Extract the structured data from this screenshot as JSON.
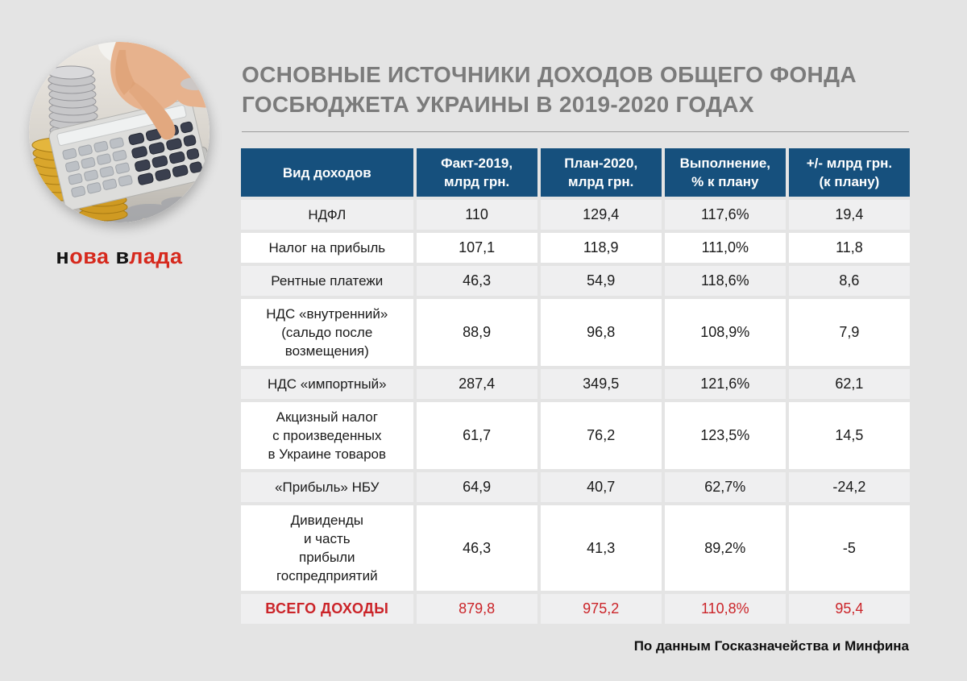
{
  "colors": {
    "page_bg": "#e4e4e4",
    "header_bg": "#16507d",
    "header_text": "#ffffff",
    "row_gray": "#efeff0",
    "row_white": "#ffffff",
    "title_gray": "#7b7b7b",
    "total_red": "#cb2429",
    "logo_black": "#141414",
    "logo_red": "#d6291d",
    "divider": "#9a9a9a",
    "footer_text": "#0f0f0f"
  },
  "header": {
    "title_line1": "ОСНОВНЫЕ ИСТОЧНИКИ ДОХОДОВ ОБЩЕГО ФОНДА",
    "title_line2": "ГОСБЮДЖЕТА УКРАИНЫ В 2019-2020 ГОДАХ"
  },
  "logo": {
    "word1_first": "н",
    "word1_rest": "ова",
    "word2_first": "в",
    "word2_rest": "лада"
  },
  "footer": {
    "source": "По данным Госказначейства и Минфина"
  },
  "chart_data": {
    "type": "table",
    "title": "ОСНОВНЫЕ ИСТОЧНИКИ ДОХОДОВ ОБЩЕГО ФОНДА ГОСБЮДЖЕТА УКРАИНЫ В 2019-2020 ГОДАХ",
    "columns": [
      "Вид доходов",
      "Факт-2019,\nмлрд грн.",
      "План-2020,\nмлрд грн.",
      "Выполнение,\n% к плану",
      "+/- млрд грн.\n(к плану)"
    ],
    "rows": [
      {
        "label": "НДФЛ",
        "fact_2019": "110",
        "plan_2020": "129,4",
        "execution": "117,6%",
        "delta": "19,4"
      },
      {
        "label": "Налог на прибыль",
        "fact_2019": "107,1",
        "plan_2020": "118,9",
        "execution": "111,0%",
        "delta": "11,8"
      },
      {
        "label": "Рентные платежи",
        "fact_2019": "46,3",
        "plan_2020": "54,9",
        "execution": "118,6%",
        "delta": "8,6"
      },
      {
        "label": "НДС «внутренний»\n(сальдо после\nвозмещения)",
        "fact_2019": "88,9",
        "plan_2020": "96,8",
        "execution": "108,9%",
        "delta": "7,9"
      },
      {
        "label": "НДС «импортный»",
        "fact_2019": "287,4",
        "plan_2020": "349,5",
        "execution": "121,6%",
        "delta": "62,1"
      },
      {
        "label": "Акцизный налог\nс произведенных\nв Украине товаров",
        "fact_2019": "61,7",
        "plan_2020": "76,2",
        "execution": "123,5%",
        "delta": "14,5"
      },
      {
        "label": "«Прибыль» НБУ",
        "fact_2019": "64,9",
        "plan_2020": "40,7",
        "execution": "62,7%",
        "delta": "-24,2"
      },
      {
        "label": "Дивиденды\nи часть\nприбыли\nгоспредприятий",
        "fact_2019": "46,3",
        "plan_2020": "41,3",
        "execution": "89,2%",
        "delta": "-5"
      },
      {
        "label": "ВСЕГО ДОХОДЫ",
        "fact_2019": "879,8",
        "plan_2020": "975,2",
        "execution": "110,8%",
        "delta": "95,4",
        "is_total": true
      }
    ],
    "source": "По данным Госказначейства и Минфина",
    "legend_position": "none",
    "grid": false
  }
}
